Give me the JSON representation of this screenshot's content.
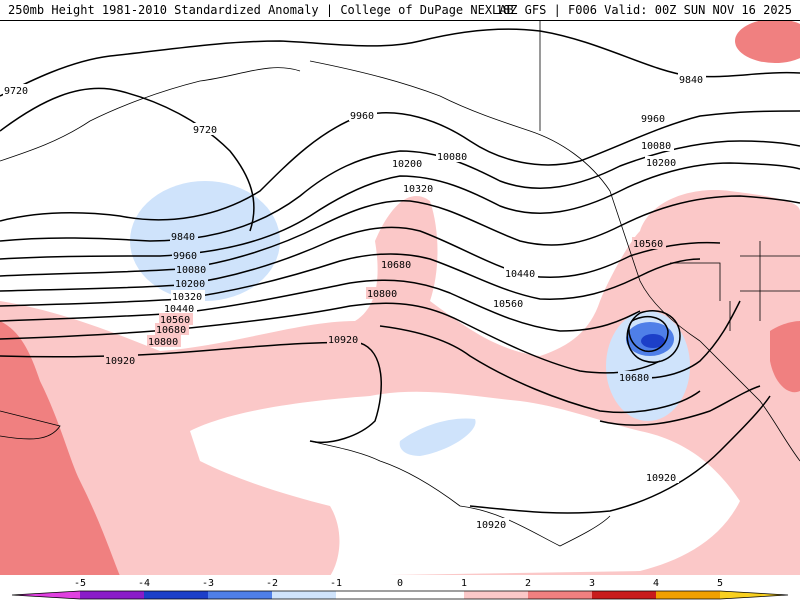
{
  "header": {
    "title_left": "250mb Height 1981-2010 Standardized Anomaly | College of DuPage NEXLAB",
    "title_right": "18Z GFS | F006 Valid: 00Z SUN NOV 16 2025"
  },
  "colors": {
    "background": "#ffffff",
    "pos1": "#fbc8c8",
    "pos2": "#f08080",
    "pos3": "#e85050",
    "neg1": "#cfe3fb",
    "neg2": "#4f7fe8",
    "neg3": "#1c3fc8",
    "contour": "#000000"
  },
  "contours": {
    "labels": [
      "9720",
      "9720",
      "9840",
      "9840",
      "9960",
      "9960",
      "9960",
      "10080",
      "10080",
      "10080",
      "10200",
      "10200",
      "10200",
      "10320",
      "10320",
      "10440",
      "10440",
      "10560",
      "10560",
      "10560",
      "10680",
      "10680",
      "10680",
      "10800",
      "10800",
      "10920",
      "10920",
      "10920",
      "10920"
    ]
  },
  "legend": {
    "ticks": [
      "-5",
      "-4",
      "-3",
      "-2",
      "-1",
      "0",
      "1",
      "2",
      "3",
      "4",
      "5"
    ],
    "colors": [
      "#e040e0",
      "#8a1cc8",
      "#1c3fc8",
      "#4f7fe8",
      "#cfe3fb",
      "#ffffff",
      "#ffffff",
      "#fbc8c8",
      "#f08080",
      "#c81c1c",
      "#f0a000",
      "#f8d020"
    ]
  }
}
